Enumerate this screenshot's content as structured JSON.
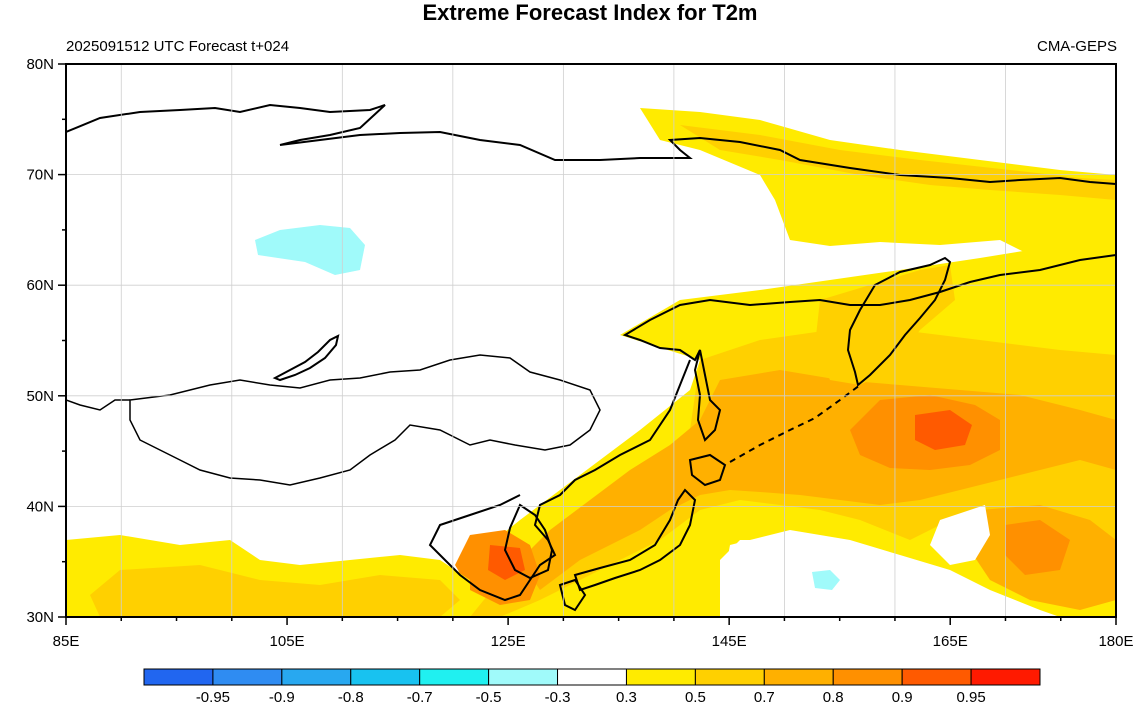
{
  "title": "Extreme Forecast Index for T2m",
  "subtitle_left": "2025091512 UTC Forecast t+024",
  "subtitle_right": "CMA-GEPS",
  "map": {
    "projection": "equirectangular",
    "lon_range": [
      85,
      180
    ],
    "lat_range": [
      30,
      80
    ],
    "lon_ticks": [
      "85E",
      "105E",
      "125E",
      "145E",
      "165E",
      "180E"
    ],
    "lat_ticks": [
      "80N",
      "70N",
      "60N",
      "50N",
      "40N",
      "30N"
    ],
    "grid": true
  },
  "colorbar": {
    "labels": [
      "-0.95",
      "-0.9",
      "-0.8",
      "-0.7",
      "-0.5",
      "-0.3",
      "0.3",
      "0.5",
      "0.7",
      "0.8",
      "0.9",
      "0.95"
    ],
    "colors": [
      "#2166f0",
      "#2f8cf2",
      "#28a8f0",
      "#18c2f0",
      "#20f0f0",
      "#a0fafa",
      "#ffffff",
      "#ffeb00",
      "#ffd000",
      "#ffb000",
      "#ff9000",
      "#ff5a00",
      "#ff1a00"
    ]
  },
  "efi_colors": {
    "low": "#a0fafa",
    "moderate": "#ffeb00",
    "elevated": "#ffd000",
    "high": "#ffb000",
    "very_high": "#ff9000",
    "extreme": "#ff5a00",
    "max": "#ff1a00"
  }
}
